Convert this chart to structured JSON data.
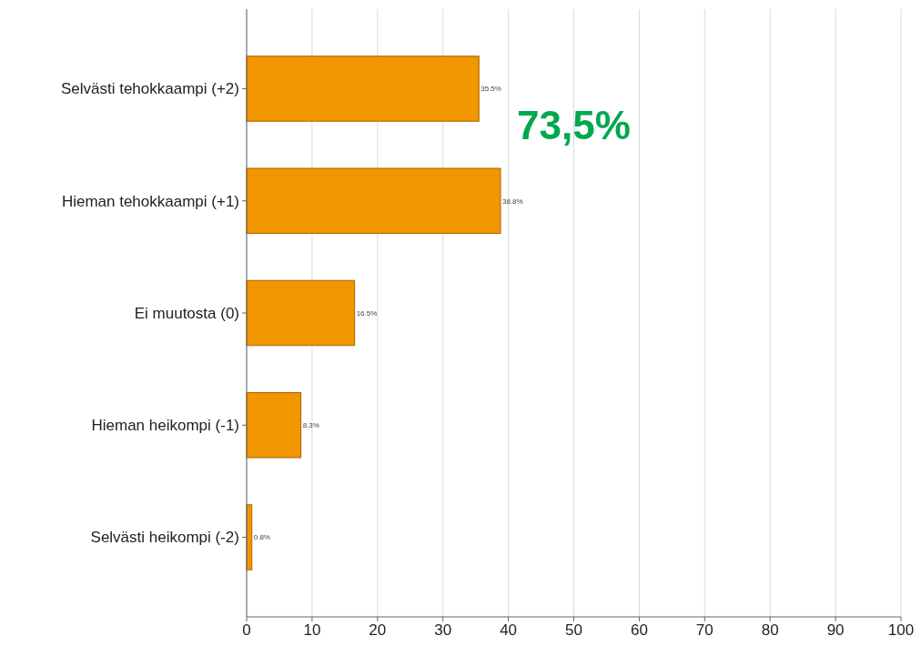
{
  "chart_data": {
    "type": "bar",
    "orientation": "horizontal",
    "categories": [
      "Selvästi tehokkaampi (+2)",
      "Hieman tehokkaampi (+1)",
      "Ei muutosta (0)",
      "Hieman heikompi (-1)",
      "Selvästi heikompi (-2)"
    ],
    "values": [
      35.5,
      38.8,
      16.5,
      8.3,
      0.8
    ],
    "value_labels": [
      "35.5%",
      "38.8%",
      "16.5%",
      "8.3%",
      "0.8%"
    ],
    "color": "#f29600",
    "xlim": [
      0,
      100
    ],
    "xticks": [
      0,
      10,
      20,
      30,
      40,
      50,
      60,
      70,
      80,
      90,
      100
    ],
    "grid": "x",
    "annotations": [
      "73,5%"
    ]
  }
}
